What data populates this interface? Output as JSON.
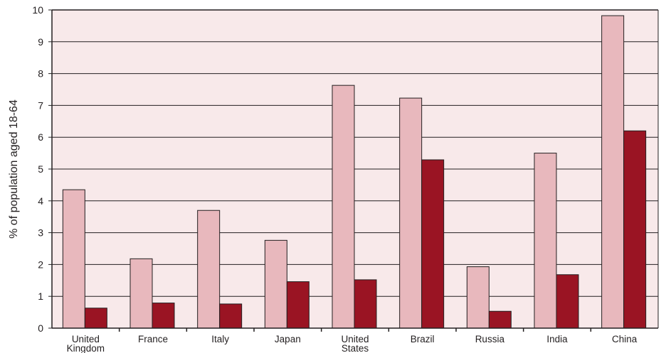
{
  "chart_data": {
    "type": "bar",
    "title": "",
    "xlabel": "",
    "ylabel": "% of population aged 18-64",
    "ylim": [
      0,
      10
    ],
    "yticks": [
      0,
      1,
      2,
      3,
      4,
      5,
      6,
      7,
      8,
      9,
      10
    ],
    "grid": true,
    "categories": [
      [
        "United",
        "Kingdom"
      ],
      [
        "France"
      ],
      [
        "Italy"
      ],
      [
        "Japan"
      ],
      [
        "United",
        "States"
      ],
      [
        "Brazil"
      ],
      [
        "Russia"
      ],
      [
        "India"
      ],
      [
        "China"
      ]
    ],
    "series": [
      {
        "values": [
          4.35,
          2.18,
          3.7,
          2.76,
          7.63,
          7.23,
          1.93,
          5.5,
          9.82
        ]
      },
      {
        "values": [
          0.63,
          0.79,
          0.76,
          1.46,
          1.52,
          5.29,
          0.53,
          1.68,
          6.2
        ]
      }
    ]
  },
  "colors": {
    "plot_background": "#f8e9ea",
    "series_1": "#e8b8bd",
    "series_2": "#9a1423",
    "axis": "#231f20",
    "bar_outline": "#231f20"
  }
}
